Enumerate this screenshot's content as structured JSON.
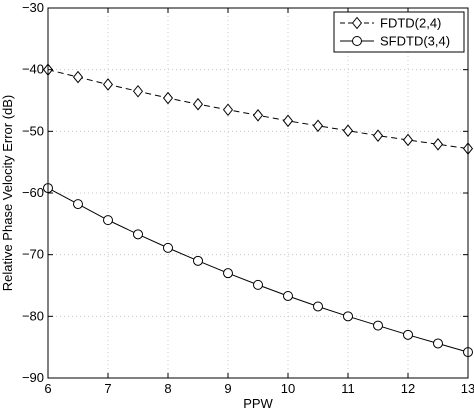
{
  "chart_data": {
    "type": "line",
    "xlabel": "PPW",
    "ylabel": "Relative Phase Velocity Error (dB)",
    "xlim": [
      6,
      13
    ],
    "ylim": [
      -90,
      -30
    ],
    "x_ticks": [
      "6",
      "7",
      "8",
      "9",
      "10",
      "11",
      "12",
      "13"
    ],
    "y_ticks": [
      "−30",
      "−40",
      "−50",
      "−60",
      "−70",
      "−80",
      "−90"
    ],
    "grid": true,
    "legend_position": "top-right",
    "x": [
      6,
      6.5,
      7,
      7.5,
      8,
      8.5,
      9,
      9.5,
      10,
      10.5,
      11,
      11.5,
      12,
      12.5,
      13
    ],
    "series": [
      {
        "name": "FDTD(2,4)",
        "line_style": "dashed",
        "marker": "diamond",
        "values": [
          -40.0,
          -41.2,
          -42.4,
          -43.5,
          -44.6,
          -45.6,
          -46.5,
          -47.4,
          -48.3,
          -49.1,
          -49.9,
          -50.7,
          -51.4,
          -52.1,
          -52.8
        ]
      },
      {
        "name": "SFDTD(3,4)",
        "line_style": "solid",
        "marker": "circle",
        "values": [
          -59.2,
          -61.8,
          -64.4,
          -66.7,
          -68.9,
          -71.0,
          -73.0,
          -74.9,
          -76.7,
          -78.4,
          -80.0,
          -81.5,
          -83.0,
          -84.4,
          -85.8
        ]
      }
    ],
    "colors": {
      "line": "#000000",
      "grid": "#c8c8c8",
      "marker_fill": "#ffffff"
    }
  }
}
